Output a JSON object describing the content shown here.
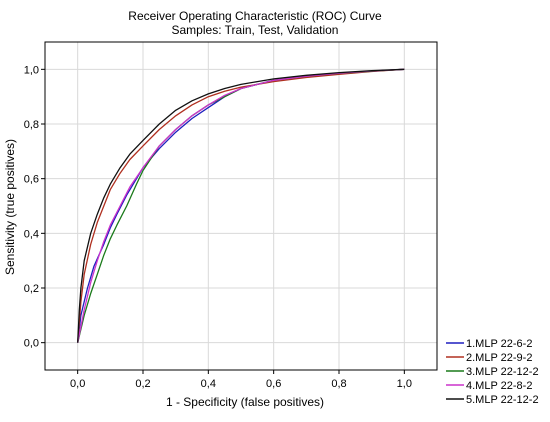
{
  "chart_data": {
    "type": "line",
    "title": "Receiver Operating Characteristic (ROC) Curve",
    "subtitle": "Samples: Train, Test, Validation",
    "xlabel": "1 - Specificity (false positives)",
    "ylabel": "Sensitivity (true positives)",
    "xlim": [
      -0.1,
      1.1
    ],
    "ylim": [
      -0.1,
      1.1
    ],
    "grid": true,
    "legend_position": "bottom-right",
    "x_ticks": [
      0.0,
      0.2,
      0.4,
      0.6,
      0.8,
      1.0
    ],
    "x_tick_labels": [
      "0,0",
      "0,2",
      "0,4",
      "0,6",
      "0,8",
      "1,0"
    ],
    "y_ticks": [
      0.0,
      0.2,
      0.4,
      0.6,
      0.8,
      1.0
    ],
    "y_tick_labels": [
      "0,0",
      "0,2",
      "0,4",
      "0,6",
      "0,8",
      "1,0"
    ],
    "series": [
      {
        "name": "1.MLP 22-6-2",
        "color": "#1f1fbf",
        "x": [
          0.0,
          0.01,
          0.03,
          0.05,
          0.08,
          0.1,
          0.12,
          0.15,
          0.18,
          0.2,
          0.25,
          0.3,
          0.35,
          0.4,
          0.45,
          0.5,
          0.55,
          0.6,
          0.7,
          0.8,
          0.9,
          1.0
        ],
        "y": [
          0.0,
          0.1,
          0.2,
          0.28,
          0.36,
          0.42,
          0.47,
          0.54,
          0.6,
          0.64,
          0.71,
          0.77,
          0.82,
          0.86,
          0.9,
          0.93,
          0.945,
          0.96,
          0.975,
          0.985,
          0.993,
          1.0
        ]
      },
      {
        "name": "2.MLP 22-9-2",
        "color": "#b03020",
        "x": [
          0.0,
          0.01,
          0.02,
          0.04,
          0.06,
          0.08,
          0.1,
          0.13,
          0.16,
          0.2,
          0.25,
          0.3,
          0.35,
          0.4,
          0.45,
          0.5,
          0.55,
          0.6,
          0.7,
          0.8,
          0.9,
          1.0
        ],
        "y": [
          0.0,
          0.15,
          0.25,
          0.36,
          0.44,
          0.5,
          0.56,
          0.62,
          0.67,
          0.72,
          0.78,
          0.83,
          0.87,
          0.9,
          0.92,
          0.935,
          0.945,
          0.955,
          0.97,
          0.982,
          0.992,
          1.0
        ]
      },
      {
        "name": "3.MLP 22-12-2",
        "color": "#1a7a1a",
        "x": [
          0.0,
          0.02,
          0.04,
          0.06,
          0.08,
          0.1,
          0.12,
          0.15,
          0.18,
          0.2,
          0.25,
          0.3,
          0.35,
          0.4,
          0.45,
          0.5,
          0.55,
          0.6,
          0.7,
          0.8,
          0.9,
          1.0
        ],
        "y": [
          0.0,
          0.1,
          0.18,
          0.25,
          0.32,
          0.38,
          0.43,
          0.5,
          0.58,
          0.63,
          0.72,
          0.78,
          0.83,
          0.87,
          0.9,
          0.93,
          0.945,
          0.96,
          0.975,
          0.985,
          0.993,
          1.0
        ]
      },
      {
        "name": "4.MLP 22-8-2",
        "color": "#cc33cc",
        "x": [
          0.0,
          0.02,
          0.04,
          0.06,
          0.08,
          0.1,
          0.13,
          0.16,
          0.2,
          0.25,
          0.3,
          0.35,
          0.4,
          0.45,
          0.5,
          0.55,
          0.6,
          0.7,
          0.8,
          0.9,
          1.0
        ],
        "y": [
          0.0,
          0.12,
          0.22,
          0.3,
          0.37,
          0.43,
          0.5,
          0.57,
          0.64,
          0.72,
          0.78,
          0.83,
          0.87,
          0.905,
          0.93,
          0.945,
          0.96,
          0.975,
          0.986,
          0.994,
          1.0
        ]
      },
      {
        "name": "5.MLP 22-12-2",
        "color": "#111111",
        "x": [
          0.0,
          0.005,
          0.01,
          0.02,
          0.04,
          0.06,
          0.08,
          0.1,
          0.13,
          0.16,
          0.2,
          0.25,
          0.3,
          0.35,
          0.4,
          0.45,
          0.5,
          0.55,
          0.6,
          0.7,
          0.8,
          0.9,
          1.0
        ],
        "y": [
          0.0,
          0.12,
          0.2,
          0.3,
          0.4,
          0.47,
          0.53,
          0.58,
          0.64,
          0.69,
          0.74,
          0.8,
          0.85,
          0.885,
          0.91,
          0.93,
          0.945,
          0.955,
          0.965,
          0.978,
          0.988,
          0.995,
          1.0
        ]
      }
    ]
  }
}
